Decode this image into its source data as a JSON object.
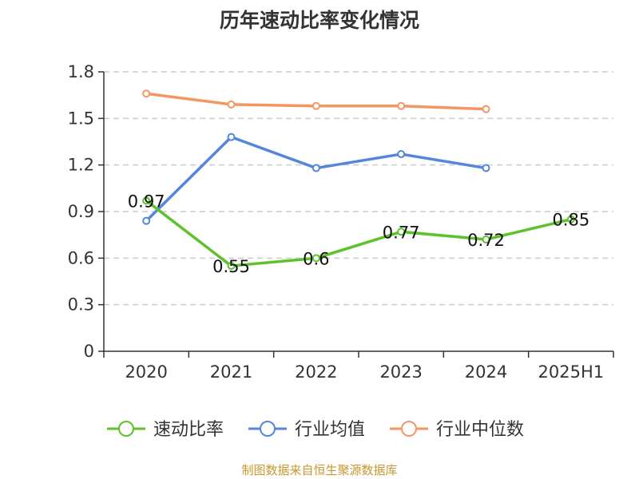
{
  "title": "历年速动比率变化情况",
  "source": "制图数据来自恒生聚源数据库",
  "colors": {
    "速动比率": "#5ec22b",
    "行业均值": "#5586dc",
    "行业中位数": "#f59563",
    "grid": "#cccccc",
    "axis": "#333333"
  },
  "chart_data": {
    "type": "line",
    "title": "历年速动比率变化情况",
    "xlabel": "",
    "ylabel": "",
    "categories": [
      "2020",
      "2021",
      "2022",
      "2023",
      "2024",
      "2025H1"
    ],
    "ylim": [
      0,
      1.8
    ],
    "yticks": [
      "0",
      "0.3",
      "0.6",
      "0.9",
      "1.2",
      "1.5",
      "1.8"
    ],
    "grid": true,
    "legend_position": "bottom",
    "series": [
      {
        "name": "速动比率",
        "values": [
          0.97,
          0.55,
          0.6,
          0.77,
          0.72,
          0.85
        ],
        "labels": [
          "0.97",
          "0.55",
          "0.6",
          "0.77",
          "0.72",
          "0.85"
        ]
      },
      {
        "name": "行业均值",
        "values": [
          0.84,
          1.38,
          1.18,
          1.27,
          1.18,
          null
        ]
      },
      {
        "name": "行业中位数",
        "values": [
          1.66,
          1.59,
          1.58,
          1.58,
          1.56,
          null
        ]
      }
    ]
  }
}
